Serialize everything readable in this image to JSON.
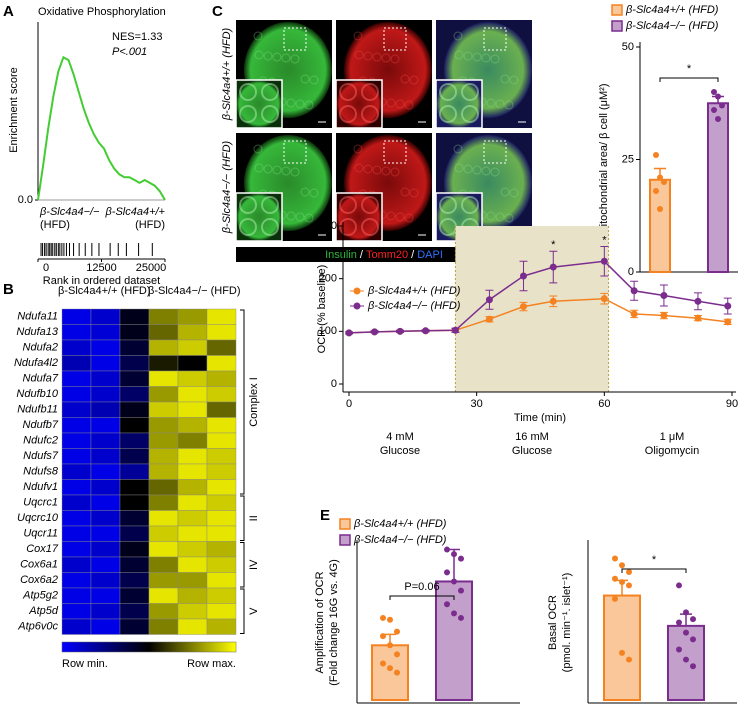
{
  "chart_data": [
    {
      "type": "gsea",
      "panel": "A",
      "title": "Oxidative Phosphorylation",
      "ylabel": "Enrichment score",
      "xlabel": "Rank in ordered dataset",
      "annotations": [
        "NES=1.33",
        "P<.001"
      ],
      "group_labels": [
        [
          "β-Slc4a4−/−",
          "(HFD)"
        ],
        [
          "β-Slc4a4+/+",
          "(HFD)"
        ]
      ],
      "group_colors": [
        "#7b2d8e",
        "#f58220"
      ],
      "x": [
        0,
        1000,
        2000,
        3000,
        4000,
        5000,
        6000,
        7000,
        8000,
        9000,
        10000,
        11000,
        12000,
        13000,
        14000,
        15000,
        16000,
        17000,
        18000,
        19000,
        20000,
        21000,
        22000,
        23000,
        24000,
        25000
      ],
      "values": [
        0,
        0.12,
        0.25,
        0.36,
        0.45,
        0.5,
        0.49,
        0.44,
        0.38,
        0.32,
        0.27,
        0.23,
        0.2,
        0.18,
        0.14,
        0.11,
        0.09,
        0.08,
        0.08,
        0.07,
        0.06,
        0.07,
        0.06,
        0.05,
        0.03,
        0
      ],
      "hits": [
        600,
        900,
        1300,
        1600,
        2000,
        2300,
        2600,
        2900,
        3300,
        3600,
        4000,
        4300,
        4700,
        5100,
        5600,
        6200,
        7000,
        8100,
        9300,
        10600,
        12000,
        14200,
        15800,
        17400,
        19800,
        22500
      ],
      "color": "#44cc33",
      "xlim": [
        0,
        25000
      ],
      "xticks": [
        0,
        12500,
        25000
      ],
      "ylim": [
        0,
        0.55
      ],
      "yticks": [
        {
          "value": 0,
          "label": "0.0"
        }
      ]
    },
    {
      "type": "heatmap",
      "panel": "B",
      "column_groups": [
        "β-Slc4a4+/+ (HFD)",
        "β-Slc4a4−/− (HFD)"
      ],
      "column_group_colors": [
        "#f58220",
        "#7b2d8e"
      ],
      "row_groups": [
        {
          "name": "Complex I",
          "rows": [
            "Ndufa11",
            "Ndufa13",
            "Ndufa2",
            "Ndufa4l2",
            "Ndufa7",
            "Ndufb10",
            "Ndufb11",
            "Ndufb7",
            "Ndufc2",
            "Ndufs7",
            "Ndufs8",
            "Ndufv1"
          ],
          "values": [
            [
              0.05,
              0.1,
              0.45,
              0.75,
              0.8,
              0.95
            ],
            [
              0.05,
              0.08,
              0.45,
              0.7,
              0.85,
              0.95
            ],
            [
              0.1,
              0.05,
              0.4,
              0.85,
              0.9,
              0.7
            ],
            [
              0.15,
              0.05,
              0.35,
              0.55,
              0.5,
              0.95
            ],
            [
              0.05,
              0.1,
              0.4,
              0.95,
              0.9,
              0.85
            ],
            [
              0.05,
              0.1,
              0.3,
              0.8,
              0.95,
              0.9
            ],
            [
              0.1,
              0.15,
              0.45,
              0.9,
              0.95,
              0.7
            ],
            [
              0.05,
              0.05,
              0.5,
              0.8,
              0.85,
              0.95
            ],
            [
              0.05,
              0.1,
              0.3,
              0.8,
              0.75,
              0.95
            ],
            [
              0.05,
              0.1,
              0.35,
              0.85,
              0.95,
              0.9
            ],
            [
              0.1,
              0.05,
              0.2,
              0.85,
              0.95,
              0.9
            ],
            [
              0.05,
              0.1,
              0.5,
              0.7,
              0.85,
              0.95
            ]
          ]
        },
        {
          "name": "II",
          "rows": [
            "Uqcrc1",
            "Uqcrc10",
            "Uqcr11"
          ],
          "values": [
            [
              0.1,
              0.05,
              0.5,
              0.75,
              0.95,
              0.9
            ],
            [
              0.05,
              0.1,
              0.4,
              0.95,
              0.9,
              0.95
            ],
            [
              0.05,
              0.05,
              0.35,
              0.9,
              0.95,
              0.95
            ]
          ]
        },
        {
          "name": "IV",
          "rows": [
            "Cox17",
            "Cox6a1",
            "Cox6a2"
          ],
          "values": [
            [
              0.05,
              0.1,
              0.45,
              0.95,
              0.9,
              0.85
            ],
            [
              0.1,
              0.05,
              0.4,
              0.75,
              0.95,
              0.9
            ],
            [
              0.05,
              0.1,
              0.35,
              0.8,
              0.8,
              0.95
            ]
          ]
        },
        {
          "name": "V",
          "rows": [
            "Atp5g2",
            "Atp5d",
            "Atp6v0c"
          ],
          "values": [
            [
              0.05,
              0.05,
              0.4,
              0.95,
              0.85,
              0.9
            ],
            [
              0.05,
              0.1,
              0.35,
              0.8,
              0.9,
              0.95
            ],
            [
              0.1,
              0.05,
              0.4,
              0.75,
              0.95,
              0.85
            ]
          ]
        }
      ],
      "colormap": [
        "#0000ff",
        "#000000",
        "#ffff00"
      ],
      "zlim": [
        0,
        1
      ],
      "legend_labels": [
        "Row min.",
        "Row max."
      ]
    },
    {
      "type": "bar",
      "panel": "C",
      "image_labels": [
        "β-Slc4a4+/+ (HFD)",
        "β-Slc4a4−/− (HFD)"
      ],
      "stain_labels": [
        "Insulin",
        "Tomm20",
        "DAPI"
      ],
      "stain_colors": [
        "#2db83d",
        "#ff2020",
        "#3070ff"
      ],
      "separator": "/",
      "ylabel": [
        "Mitochondrial area/ β cell (μM²)"
      ],
      "series": [
        {
          "name": "β-Slc4a4+/+ (HFD)",
          "color": "#f58220",
          "values": [
            20.5
          ],
          "errors": [
            2.5
          ],
          "points": [
            26,
            21,
            20,
            18,
            14
          ]
        },
        {
          "name": "β-Slc4a4−/− (HFD)",
          "color": "#7b2d8e",
          "values": [
            37.5
          ],
          "errors": [
            1.5
          ],
          "points": [
            40,
            39,
            37,
            36,
            34
          ]
        }
      ],
      "significance": "*",
      "ylim": [
        0,
        50
      ],
      "yticks": [
        0,
        25,
        50
      ]
    },
    {
      "type": "line",
      "panel": "D",
      "xlabel": "Time (min)",
      "ylabel": "OCR (% baseline)",
      "x": [
        0,
        6,
        12,
        18,
        25,
        33,
        41,
        48,
        60,
        67,
        74,
        82,
        89
      ],
      "series": [
        {
          "name": "β-Slc4a4+/+ (HFD)",
          "color": "#f58220",
          "values": [
            97,
            99,
            100,
            101,
            102,
            123,
            147,
            157,
            162,
            133,
            130,
            125,
            118
          ],
          "errors": [
            2,
            2,
            2,
            2,
            3,
            5,
            8,
            10,
            10,
            7,
            6,
            5,
            5
          ]
        },
        {
          "name": "β-Slc4a4−/− (HFD)",
          "color": "#7b2d8e",
          "values": [
            97,
            99,
            100,
            101,
            102,
            160,
            205,
            222,
            233,
            177,
            168,
            157,
            148
          ],
          "errors": [
            2,
            2,
            2,
            2,
            4,
            18,
            28,
            30,
            28,
            18,
            20,
            16,
            15
          ]
        }
      ],
      "highlight": [
        25,
        61
      ],
      "highlight_color": "#e8e2c8",
      "conditions": [
        [
          "4 mM",
          "Glucose"
        ],
        [
          "16 mM",
          "Glucose"
        ],
        [
          "1 μM",
          "Oligomycin"
        ]
      ],
      "significance": [
        {
          "x": 48,
          "label": "*"
        },
        {
          "x": 60,
          "label": "*"
        }
      ],
      "xlim": [
        0,
        90
      ],
      "xticks": [
        0,
        30,
        60,
        90
      ],
      "ylim": [
        0,
        300
      ],
      "yticks": [
        0,
        100,
        200,
        300
      ]
    },
    {
      "type": "bar",
      "panel": "E",
      "ylabel": [
        "Amplification of OCR",
        "(Fold change 16G vs. 4G)"
      ],
      "series": [
        {
          "name": "β-Slc4a4+/+ (HFD)",
          "color": "#f58220",
          "values": [
            1.6
          ],
          "errors": [
            0.12
          ],
          "points": [
            1.9,
            1.88,
            1.75,
            1.7,
            1.6,
            1.5,
            1.4,
            1.35,
            1.3
          ]
        },
        {
          "name": "β-Slc4a4−/− (HFD)",
          "color": "#7b2d8e",
          "values": [
            2.3
          ],
          "errors": [
            0.35
          ],
          "points": [
            2.65,
            2.6,
            2.55,
            2.4,
            2.3,
            2.2,
            2.05,
            1.95,
            1.9
          ]
        }
      ],
      "significance": "P=0.06",
      "ylim": [
        1,
        2.7
      ]
    },
    {
      "type": "bar",
      "ylabel": [
        "Basal OCR",
        "(pmol. min⁻¹. islet⁻¹)"
      ],
      "series": [
        {
          "color": "#f58220",
          "values": [
            3.1
          ],
          "errors": [
            0.45
          ],
          "points": [
            4.2,
            4.0,
            3.8,
            3.6,
            3.5,
            3.4,
            3.0,
            1.4,
            1.2
          ]
        },
        {
          "color": "#7b2d8e",
          "values": [
            2.2
          ],
          "errors": [
            0.35
          ],
          "points": [
            3.4,
            2.6,
            2.4,
            2.3,
            2.0,
            1.8,
            1.5,
            1.2,
            1.0
          ]
        }
      ],
      "significance": "*",
      "ylim": [
        0,
        4.6
      ]
    }
  ]
}
